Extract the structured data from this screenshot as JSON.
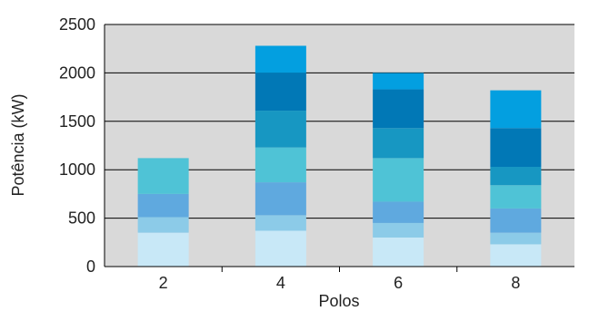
{
  "chart_data": {
    "type": "bar",
    "stacked": true,
    "xlabel": "Polos",
    "ylabel": "Potência (kW)",
    "ylim": [
      0,
      2500
    ],
    "yticks": [
      0,
      500,
      1000,
      1500,
      2000,
      2500
    ],
    "grid": true,
    "background": "#d9d9d9",
    "categories": [
      "2",
      "4",
      "6",
      "8"
    ],
    "stacks": [
      {
        "category": "2",
        "boundaries": [
          0,
          350,
          510,
          750,
          1120
        ]
      },
      {
        "category": "4",
        "boundaries": [
          0,
          370,
          530,
          870,
          1230,
          1610,
          2000,
          2280
        ]
      },
      {
        "category": "6",
        "boundaries": [
          0,
          300,
          450,
          670,
          1120,
          1430,
          1830,
          2000
        ]
      },
      {
        "category": "8",
        "boundaries": [
          0,
          230,
          350,
          600,
          840,
          1030,
          1430,
          1820
        ]
      }
    ],
    "segment_colors": [
      "#c8e8f7",
      "#8ccbe8",
      "#5fa9df",
      "#4fc3d6",
      "#1797c2",
      "#0178b6",
      "#039fe0"
    ]
  }
}
